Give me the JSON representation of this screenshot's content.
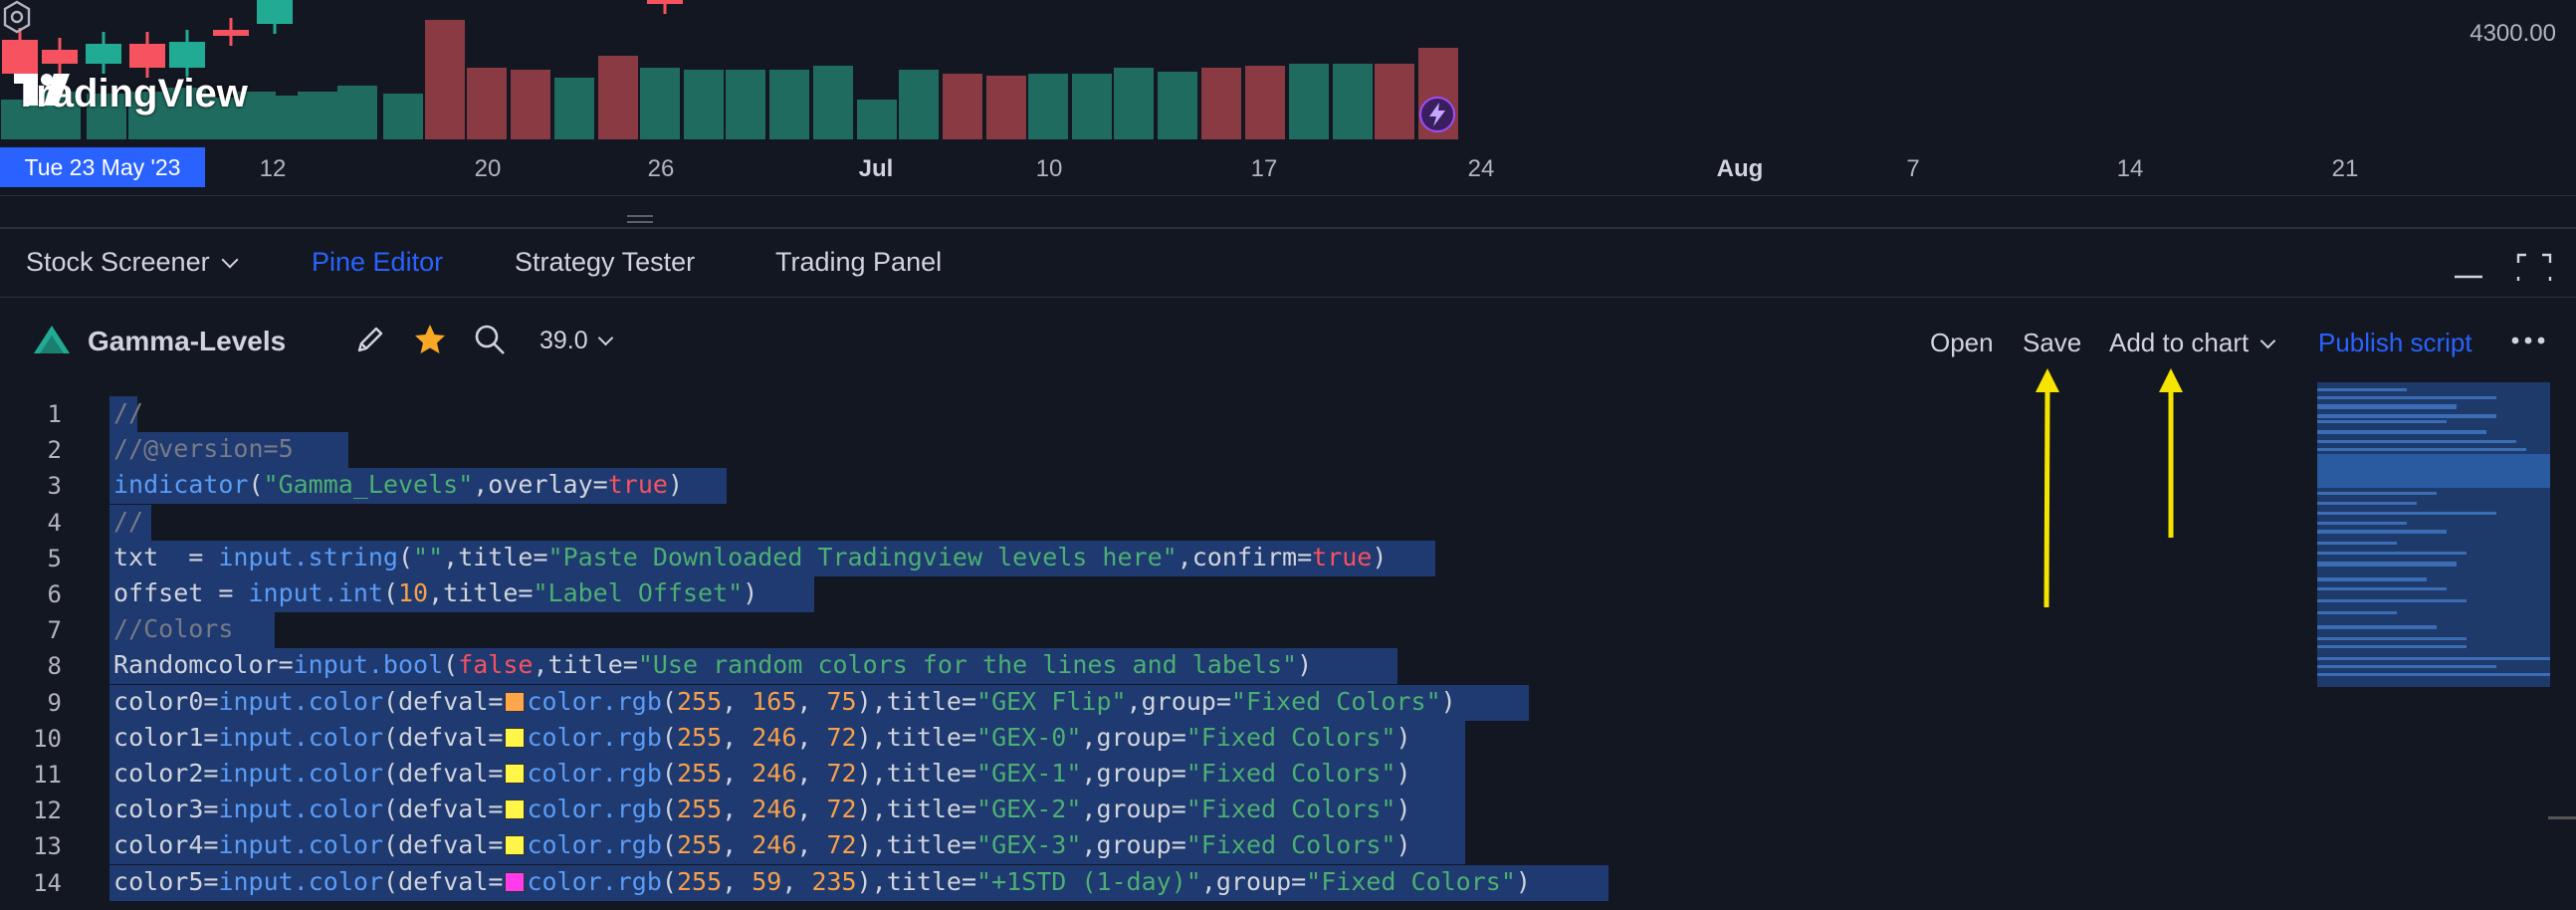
{
  "chart": {
    "price_label": "4300.00",
    "logo_text": "TradingView",
    "date_badge": "Tue 23 May '23",
    "time_ticks": [
      {
        "label": "12",
        "bold": false
      },
      {
        "label": "20",
        "bold": false
      },
      {
        "label": "26",
        "bold": false
      },
      {
        "label": "Jul",
        "bold": true
      },
      {
        "label": "10",
        "bold": false
      },
      {
        "label": "17",
        "bold": false
      },
      {
        "label": "24",
        "bold": false
      },
      {
        "label": "Aug",
        "bold": true
      },
      {
        "label": "7",
        "bold": false
      },
      {
        "label": "14",
        "bold": false
      },
      {
        "label": "21",
        "bold": false
      }
    ],
    "colors": {
      "up": "#22ab94",
      "down": "#f7525f",
      "up_volume": "#1f6b5f",
      "down_volume": "#8a3a42",
      "accent": "#2962ff"
    }
  },
  "tabs": [
    {
      "label": "Stock Screener",
      "active": false,
      "dropdown": true
    },
    {
      "label": "Pine Editor",
      "active": true,
      "dropdown": false
    },
    {
      "label": "Strategy Tester",
      "active": false,
      "dropdown": false
    },
    {
      "label": "Trading Panel",
      "active": false,
      "dropdown": false
    }
  ],
  "toolbar": {
    "script_name": "Gamma-Levels",
    "version": "39.0",
    "open_label": "Open",
    "save_label": "Save",
    "add_to_chart_label": "Add to chart",
    "publish_label": "Publish script"
  },
  "editor": {
    "line_numbers": [
      "1",
      "2",
      "3",
      "4",
      "5",
      "6",
      "7",
      "8",
      "9",
      "10",
      "11",
      "12",
      "13",
      "14"
    ],
    "lines": [
      "//",
      "//@version=5",
      "indicator(\"Gamma_Levels\",overlay=true)",
      "//",
      "txt  = input.string(\"\",title=\"Paste Downloaded Tradingview levels here\",confirm=true)",
      "offset = input.int(10,title=\"Label Offset\")",
      "//Colors",
      "Randomcolor=input.bool(false,title=\"Use random colors for the lines and labels\")",
      "color0=input.color(defval= color.rgb(255, 165, 75),title=\"GEX Flip\",group=\"Fixed Colors\")",
      "color1=input.color(defval= color.rgb(255, 246, 72),title=\"GEX-0\",group=\"Fixed Colors\")",
      "color2=input.color(defval= color.rgb(255, 246, 72),title=\"GEX-1\",group=\"Fixed Colors\")",
      "color3=input.color(defval= color.rgb(255, 246, 72),title=\"GEX-2\",group=\"Fixed Colors\")",
      "color4=input.color(defval= color.rgb(255, 246, 72),title=\"GEX-3\",group=\"Fixed Colors\")",
      "color5=input.color(defval= color.rgb(255, 59, 235),title=\"+1STD (1-day)\",group=\"Fixed Colors\")"
    ],
    "swatch_colors": [
      "#ffa54b",
      "#fff648",
      "#fff648",
      "#fff648",
      "#fff648",
      "#ff3beb"
    ],
    "selection_color": "#1e3a70"
  },
  "annotations": {
    "arrow_color": "#f5e400"
  }
}
